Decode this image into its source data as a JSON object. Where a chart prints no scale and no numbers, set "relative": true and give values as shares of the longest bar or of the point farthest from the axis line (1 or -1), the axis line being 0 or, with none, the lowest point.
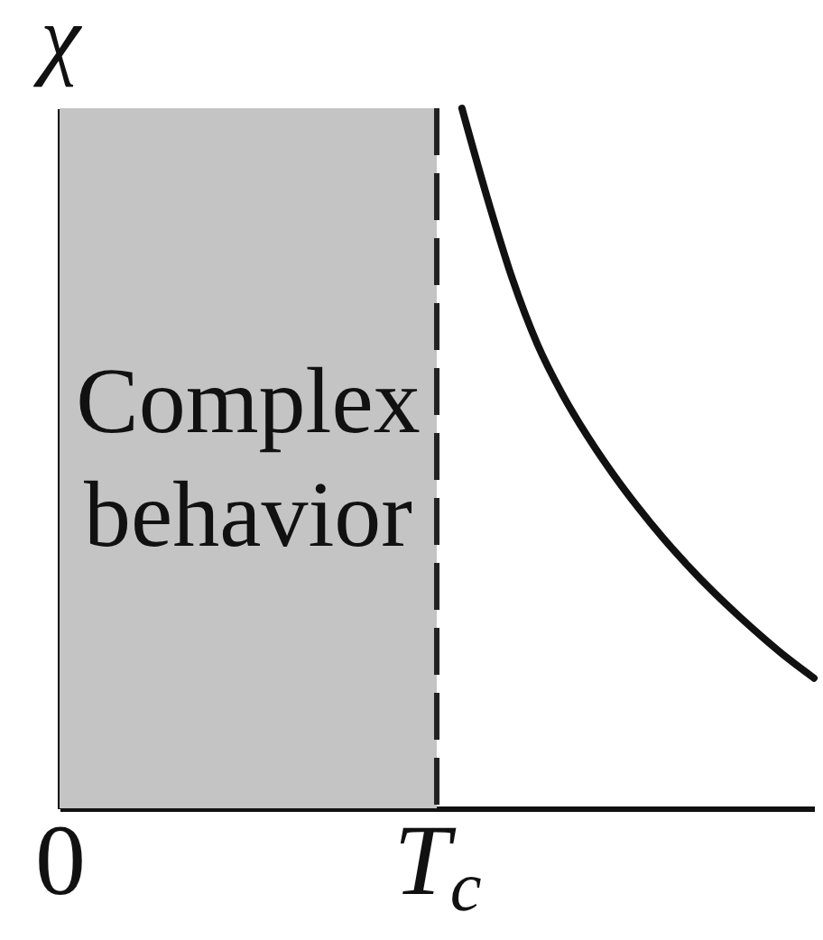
{
  "chart_data": {
    "type": "line",
    "ylabel": "χ",
    "relative": true,
    "categories": [
      "0",
      null,
      null,
      null,
      null,
      null,
      null,
      null,
      null,
      null,
      null,
      null,
      null,
      null,
      null,
      "T$_{c}$",
      null,
      null,
      null,
      null,
      null,
      null,
      null,
      null,
      null,
      null,
      null,
      null,
      null,
      null,
      null
    ],
    "series": [
      {
        "color": "#111111",
        "values": [
          null,
          null,
          null,
          null,
          null,
          null,
          null,
          null,
          null,
          null,
          null,
          null,
          null,
          null,
          null,
          null,
          1,
          0.873,
          0.757,
          0.663,
          0.591,
          0.531,
          0.478,
          0.43,
          0.386,
          0.346,
          0.309,
          0.275,
          0.243,
          0.213,
          0.186
        ]
      }
    ],
    "bands": [
      {
        "axis": "x",
        "from": "0",
        "to": "T$_{c}$",
        "label": "Complex behavior",
        "color": "#c4c4c4"
      }
    ],
    "ref_lines": [
      {
        "axis": "x",
        "value": "T$_{c}$",
        "line_style": "dashed",
        "color": "#222222"
      }
    ],
    "line_style": "solid"
  }
}
